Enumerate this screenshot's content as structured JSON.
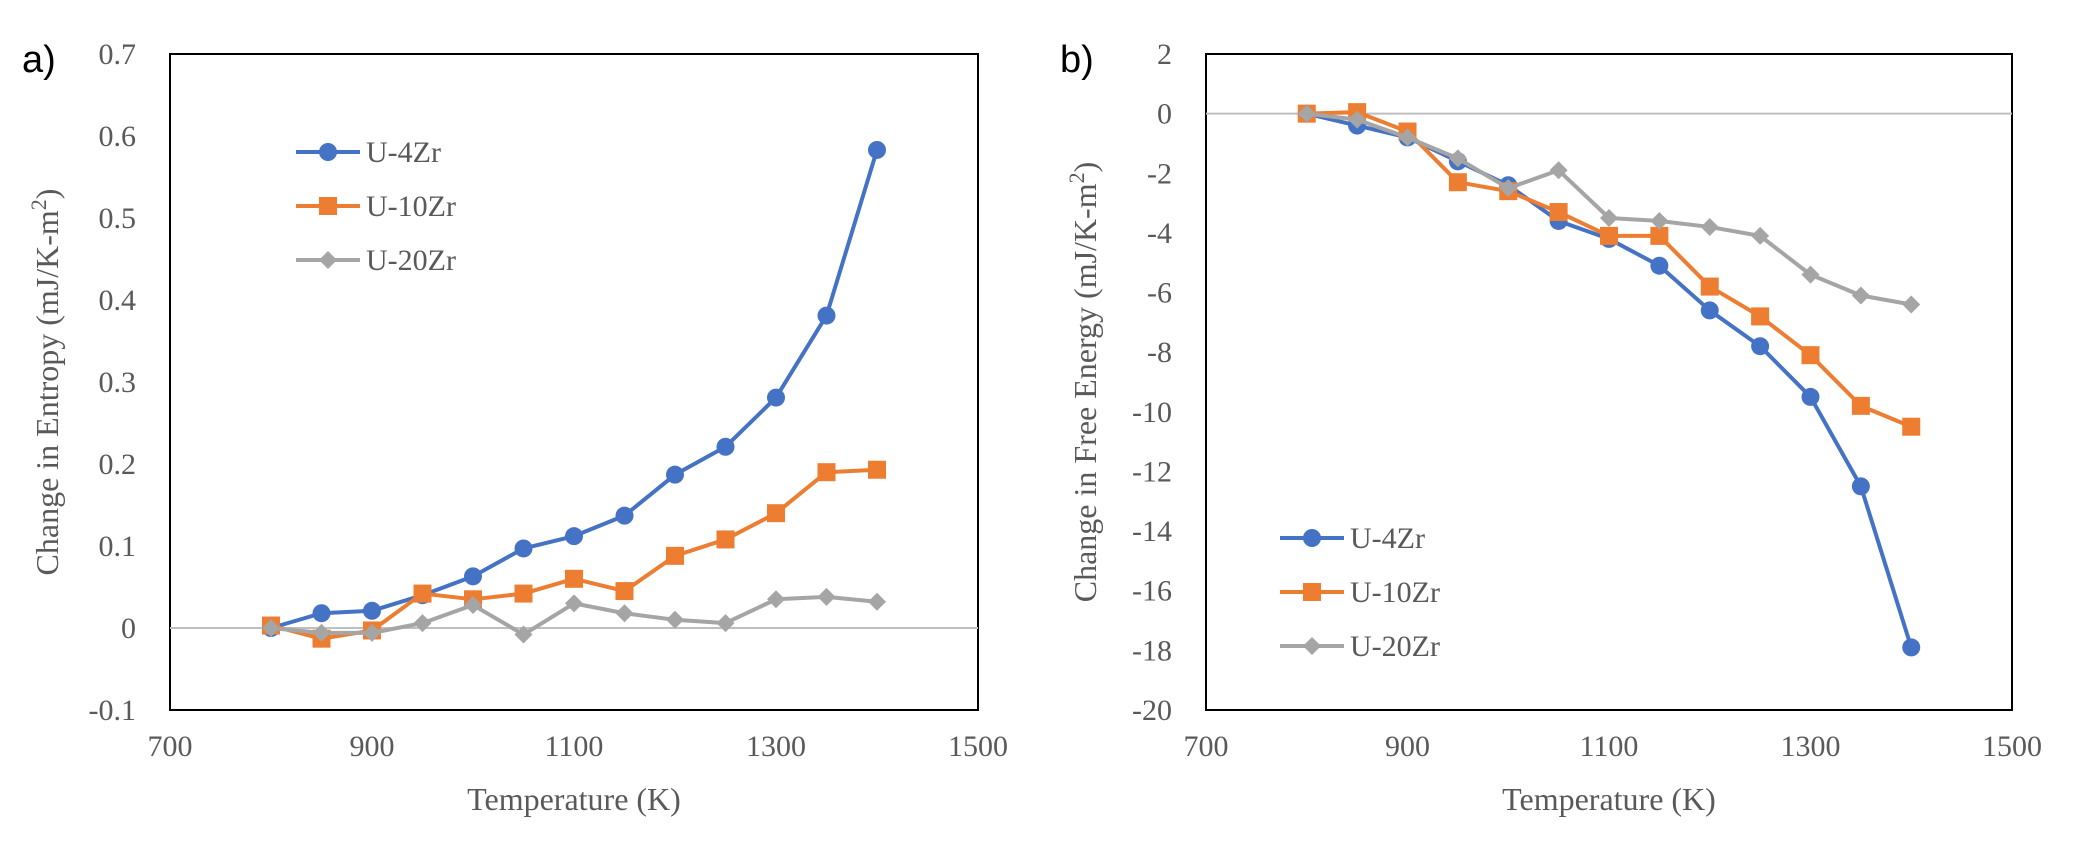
{
  "chart_data": [
    {
      "panel_label": "a)",
      "type": "line",
      "xlabel": "Temperature (K)",
      "ylabel": "Change in Entropy (mJ/K-m²)",
      "ylabel_main": "Change in Entropy (mJ/K-m",
      "ylabel_sup": "2",
      "ylabel_close": ")",
      "xlim": [
        700,
        1500
      ],
      "ylim": [
        -0.1,
        0.7
      ],
      "xticks": [
        700,
        900,
        1100,
        1300,
        1500
      ],
      "xtick_labels": [
        "700",
        "900",
        "1100",
        "1300",
        "1500"
      ],
      "yticks": [
        -0.1,
        0,
        0.1,
        0.2,
        0.3,
        0.4,
        0.5,
        0.6,
        0.7
      ],
      "ytick_labels": [
        "-0.1",
        "0",
        "0.1",
        "0.2",
        "0.3",
        "0.4",
        "0.5",
        "0.6",
        "0.7"
      ],
      "grid": false,
      "zero_line": true,
      "legend_position": "top-left",
      "x": [
        800,
        850,
        900,
        950,
        1000,
        1050,
        1100,
        1150,
        1200,
        1250,
        1300,
        1350,
        1400
      ],
      "series": [
        {
          "name": "U-4Zr",
          "color": "#4472C4",
          "marker": "circle",
          "values": [
            0.0,
            0.018,
            0.021,
            0.04,
            0.063,
            0.097,
            0.112,
            0.137,
            0.187,
            0.221,
            0.281,
            0.381,
            0.583
          ]
        },
        {
          "name": "U-10Zr",
          "color": "#ED7D31",
          "marker": "square",
          "values": [
            0.003,
            -0.013,
            -0.003,
            0.042,
            0.035,
            0.042,
            0.06,
            0.045,
            0.088,
            0.108,
            0.14,
            0.19,
            0.193
          ]
        },
        {
          "name": "U-20Zr",
          "color": "#A5A5A5",
          "marker": "diamond",
          "values": [
            0.0,
            -0.006,
            -0.006,
            0.006,
            0.028,
            -0.008,
            0.03,
            0.018,
            0.01,
            0.006,
            0.035,
            0.038,
            0.032
          ]
        }
      ]
    },
    {
      "panel_label": "b)",
      "type": "line",
      "xlabel": "Temperature (K)",
      "ylabel": "Change in Free Energy (mJ/K-m²)",
      "ylabel_main": "Change in Free Energy (mJ/K-m",
      "ylabel_sup": "2",
      "ylabel_close": ")",
      "xlim": [
        700,
        1500
      ],
      "ylim": [
        -20,
        2
      ],
      "xticks": [
        700,
        900,
        1100,
        1300,
        1500
      ],
      "xtick_labels": [
        "700",
        "900",
        "1100",
        "1300",
        "1500"
      ],
      "yticks": [
        -20,
        -18,
        -16,
        -14,
        -12,
        -10,
        -8,
        -6,
        -4,
        -2,
        0,
        2
      ],
      "ytick_labels": [
        "-20",
        "-18",
        "-16",
        "-14",
        "-12",
        "-10",
        "-8",
        "-6",
        "-4",
        "-2",
        "0",
        "2"
      ],
      "grid": false,
      "zero_line": true,
      "legend_position": "bottom-left",
      "x": [
        800,
        850,
        900,
        950,
        1000,
        1050,
        1100,
        1150,
        1200,
        1250,
        1300,
        1350,
        1400
      ],
      "series": [
        {
          "name": "U-4Zr",
          "color": "#4472C4",
          "marker": "circle",
          "values": [
            0.0,
            -0.4,
            -0.8,
            -1.6,
            -2.4,
            -3.6,
            -4.2,
            -5.1,
            -6.6,
            -7.8,
            -9.5,
            -12.5,
            -17.9
          ]
        },
        {
          "name": "U-10Zr",
          "color": "#ED7D31",
          "marker": "square",
          "values": [
            0.0,
            0.05,
            -0.6,
            -2.3,
            -2.6,
            -3.3,
            -4.1,
            -4.1,
            -5.8,
            -6.8,
            -8.1,
            -9.8,
            -10.5
          ]
        },
        {
          "name": "U-20Zr",
          "color": "#A5A5A5",
          "marker": "diamond",
          "values": [
            0.0,
            -0.2,
            -0.8,
            -1.5,
            -2.5,
            -1.9,
            -3.5,
            -3.6,
            -3.8,
            -4.1,
            -5.4,
            -6.1,
            -6.4
          ]
        }
      ]
    }
  ]
}
